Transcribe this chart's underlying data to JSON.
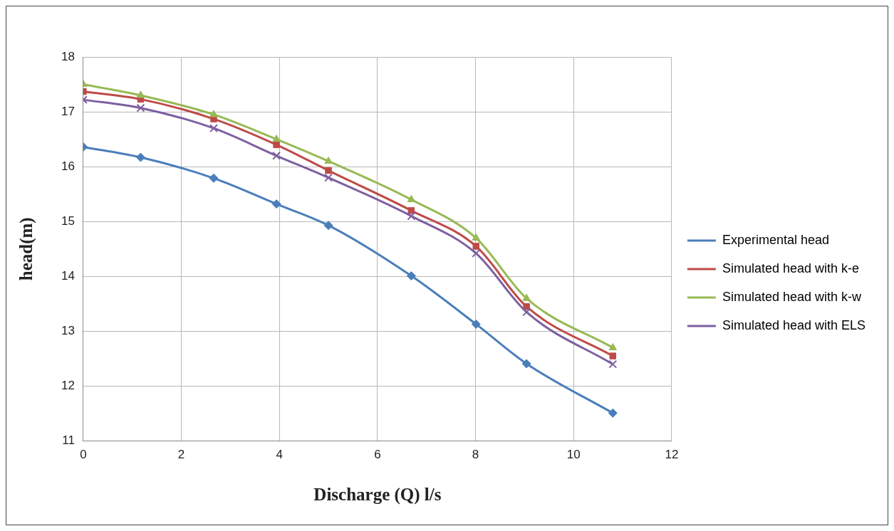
{
  "chart_data": {
    "type": "line",
    "xlabel": "Discharge (Q) l/s",
    "ylabel": "head(m)",
    "x": [
      0,
      1.17,
      2.66,
      3.94,
      5.0,
      6.69,
      8.01,
      9.04,
      10.8
    ],
    "series": [
      {
        "name": "Experimental head",
        "color": "#4a7ebb",
        "marker": "diamond",
        "values": [
          16.36,
          16.17,
          15.79,
          15.32,
          14.93,
          14.01,
          13.13,
          12.41,
          11.51
        ]
      },
      {
        "name": "Simulated head with k-e",
        "color": "#be4b48",
        "marker": "square",
        "values": [
          17.37,
          17.23,
          16.87,
          16.4,
          15.93,
          15.2,
          14.55,
          13.45,
          12.55
        ]
      },
      {
        "name": "Simulated head with k-w",
        "color": "#98b954",
        "marker": "triangle",
        "values": [
          17.5,
          17.3,
          16.95,
          16.5,
          16.1,
          15.4,
          14.7,
          13.6,
          12.7
        ]
      },
      {
        "name": "Simulated head with ELS",
        "color": "#7d60a0",
        "marker": "cross",
        "values": [
          17.22,
          17.07,
          16.7,
          16.2,
          15.8,
          15.1,
          14.42,
          13.35,
          12.4
        ]
      }
    ],
    "xlim": [
      0,
      12
    ],
    "xticks": [
      0,
      2,
      4,
      6,
      8,
      10,
      12
    ],
    "ylim": [
      11,
      18
    ],
    "yticks": [
      11,
      12,
      13,
      14,
      15,
      16,
      17,
      18
    ],
    "grid": true,
    "legend": "right"
  }
}
